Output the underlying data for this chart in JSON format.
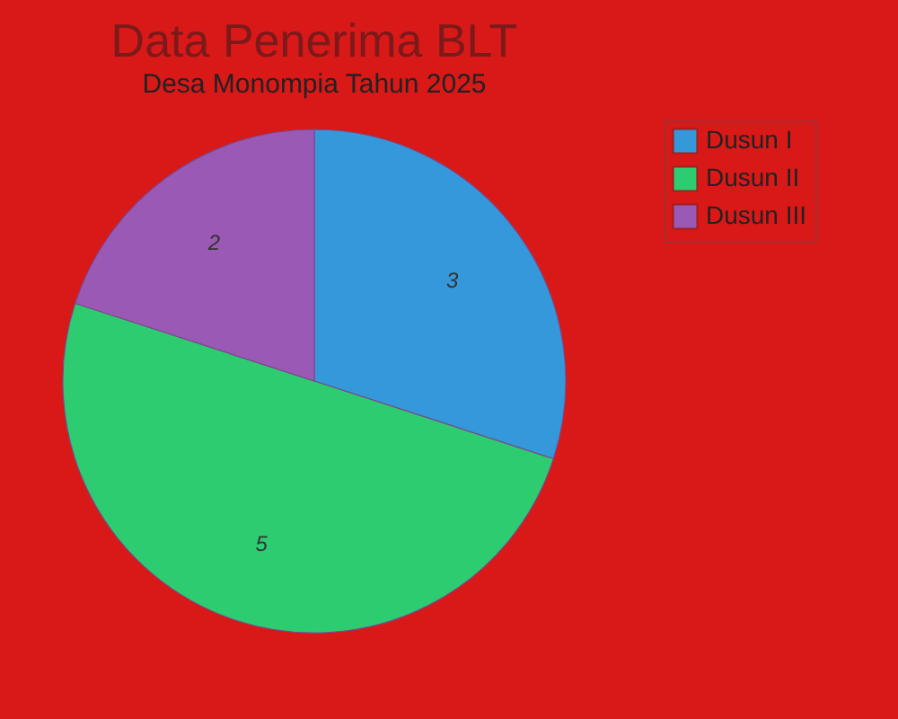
{
  "chart_data": {
    "type": "pie",
    "title": "Data Penerima BLT",
    "subtitle": "Desa Monompia Tahun 2025",
    "categories": [
      "Dusun I",
      "Dusun II",
      "Dusun III"
    ],
    "values": [
      3,
      5,
      2
    ],
    "colors": [
      "#3498db",
      "#2ecc71",
      "#9b59b6"
    ],
    "data_labels": true,
    "legend": "right"
  }
}
